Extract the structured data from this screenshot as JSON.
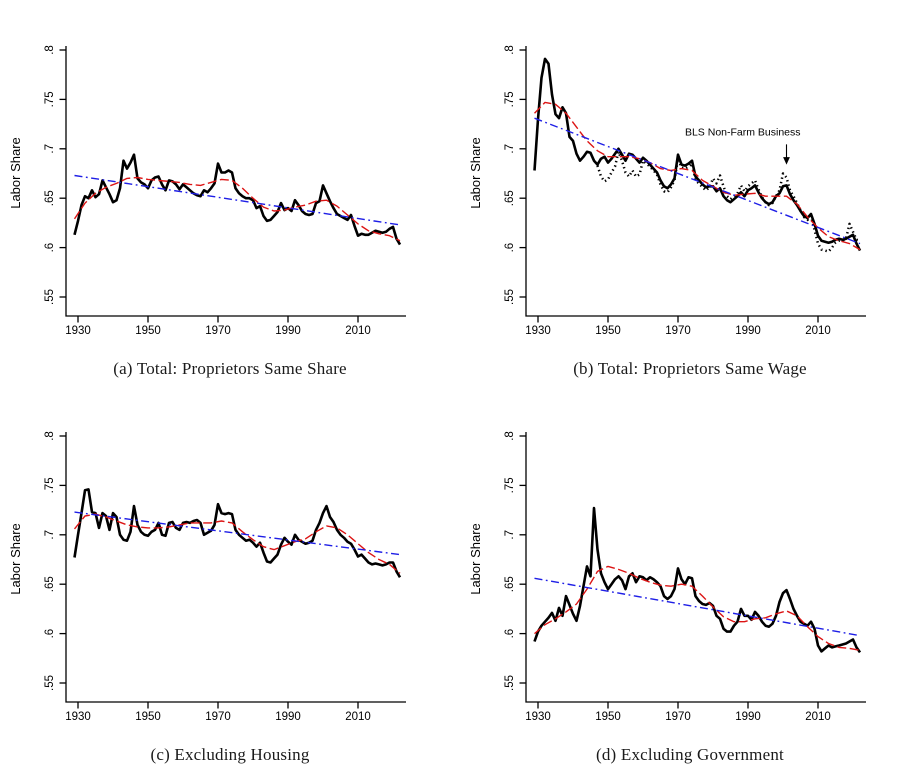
{
  "figure": {
    "ylabel": "Labor Share",
    "background": "#ffffff",
    "colors": {
      "data": "#000000",
      "smooth": "#dc1414",
      "trend": "#1e1ee6",
      "bls": "#000000"
    }
  },
  "chart_styles": {
    "data": {
      "color": "#000000",
      "width": 2.6,
      "dash": ""
    },
    "smooth": {
      "color": "#dc1414",
      "width": 1.4,
      "dash": "9 3.5"
    },
    "trend": {
      "color": "#1e1ee6",
      "width": 1.4,
      "dash": "8 3.5 1.8 3.5"
    },
    "bls": {
      "color": "#000000",
      "width": 2.5,
      "dash": "1.4 3.1"
    }
  },
  "chart_data": [
    {
      "type": "line",
      "panel": "a",
      "caption": "(a) Total: Proprietors Same Share",
      "ylabel": "Labor Share",
      "xlim": [
        1928,
        2023
      ],
      "ylim": [
        0.54,
        0.81
      ],
      "grid": false,
      "legend": "none",
      "xticks": [
        1930,
        1950,
        1970,
        1990,
        2010
      ],
      "yticks": [
        {
          "value": 0.55,
          "label": ".55"
        },
        {
          "value": 0.6,
          "label": ".6"
        },
        {
          "value": 0.65,
          "label": ".65"
        },
        {
          "value": 0.7,
          "label": ".7"
        },
        {
          "value": 0.75,
          "label": ".75"
        },
        {
          "value": 0.8,
          "label": ".8"
        }
      ],
      "series": [
        {
          "name": "labor-share-annual",
          "style": "data",
          "x_start": 1929,
          "x_step": 1,
          "values": [
            0.613,
            0.627,
            0.643,
            0.652,
            0.65,
            0.658,
            0.651,
            0.654,
            0.668,
            0.661,
            0.654,
            0.646,
            0.648,
            0.66,
            0.688,
            0.68,
            0.686,
            0.694,
            0.67,
            0.666,
            0.664,
            0.66,
            0.668,
            0.671,
            0.672,
            0.664,
            0.658,
            0.668,
            0.667,
            0.664,
            0.659,
            0.664,
            0.661,
            0.658,
            0.655,
            0.653,
            0.652,
            0.658,
            0.656,
            0.66,
            0.665,
            0.685,
            0.676,
            0.676,
            0.678,
            0.676,
            0.66,
            0.655,
            0.652,
            0.65,
            0.65,
            0.648,
            0.64,
            0.642,
            0.632,
            0.627,
            0.628,
            0.632,
            0.636,
            0.645,
            0.638,
            0.64,
            0.637,
            0.648,
            0.643,
            0.637,
            0.634,
            0.633,
            0.634,
            0.645,
            0.647,
            0.663,
            0.655,
            0.647,
            0.64,
            0.634,
            0.632,
            0.63,
            0.628,
            0.633,
            0.622,
            0.612,
            0.614,
            0.613,
            0.613,
            0.615,
            0.617,
            0.616,
            0.615,
            0.616,
            0.619,
            0.621,
            0.609,
            0.603
          ]
        },
        {
          "name": "lowess-smooth",
          "style": "smooth",
          "x": [
            1929,
            1932,
            1935,
            1938,
            1941,
            1944,
            1947,
            1950,
            1953,
            1956,
            1959,
            1962,
            1965,
            1968,
            1971,
            1974,
            1977,
            1980,
            1983,
            1986,
            1989,
            1992,
            1995,
            1998,
            2001,
            2004,
            2007,
            2010,
            2013,
            2016,
            2019,
            2022
          ],
          "values": [
            0.629,
            0.645,
            0.655,
            0.661,
            0.665,
            0.67,
            0.671,
            0.669,
            0.668,
            0.667,
            0.666,
            0.664,
            0.663,
            0.666,
            0.669,
            0.668,
            0.66,
            0.65,
            0.641,
            0.637,
            0.638,
            0.641,
            0.643,
            0.647,
            0.648,
            0.642,
            0.633,
            0.624,
            0.617,
            0.614,
            0.612,
            0.607
          ]
        },
        {
          "name": "linear-trend",
          "style": "trend",
          "x": [
            1929,
            2022
          ],
          "values": [
            0.673,
            0.623
          ]
        }
      ]
    },
    {
      "type": "line",
      "panel": "b",
      "caption": "(b) Total: Proprietors Same Wage",
      "ylabel": "Labor Share",
      "xlim": [
        1928,
        2023
      ],
      "ylim": [
        0.54,
        0.81
      ],
      "grid": false,
      "legend": "none",
      "xticks": [
        1930,
        1950,
        1970,
        1990,
        2010
      ],
      "yticks": [
        {
          "value": 0.55,
          "label": ".55"
        },
        {
          "value": 0.6,
          "label": ".6"
        },
        {
          "value": 0.65,
          "label": ".65"
        },
        {
          "value": 0.7,
          "label": ".7"
        },
        {
          "value": 0.75,
          "label": ".75"
        },
        {
          "value": 0.8,
          "label": ".8"
        }
      ],
      "annotation": {
        "text": "BLS Non-Farm Business",
        "text_x": 1988.5,
        "text_y": 0.7135,
        "arrow_x": 2001,
        "arrow_from_y": 0.7045,
        "arrow_to_y": 0.684
      },
      "series": [
        {
          "name": "labor-share-annual",
          "style": "data",
          "x_start": 1929,
          "x_step": 1,
          "values": [
            0.678,
            0.73,
            0.772,
            0.791,
            0.786,
            0.755,
            0.735,
            0.731,
            0.742,
            0.736,
            0.712,
            0.708,
            0.695,
            0.688,
            0.692,
            0.697,
            0.696,
            0.688,
            0.684,
            0.69,
            0.692,
            0.686,
            0.69,
            0.695,
            0.7,
            0.694,
            0.688,
            0.695,
            0.694,
            0.69,
            0.686,
            0.691,
            0.688,
            0.684,
            0.68,
            0.676,
            0.668,
            0.662,
            0.66,
            0.664,
            0.67,
            0.694,
            0.684,
            0.683,
            0.685,
            0.688,
            0.672,
            0.668,
            0.664,
            0.661,
            0.662,
            0.662,
            0.657,
            0.66,
            0.652,
            0.648,
            0.646,
            0.649,
            0.652,
            0.656,
            0.652,
            0.658,
            0.66,
            0.663,
            0.656,
            0.65,
            0.646,
            0.644,
            0.646,
            0.652,
            0.655,
            0.662,
            0.663,
            0.654,
            0.648,
            0.643,
            0.637,
            0.632,
            0.63,
            0.634,
            0.624,
            0.612,
            0.607,
            0.606,
            0.605,
            0.606,
            0.608,
            0.609,
            0.608,
            0.609,
            0.611,
            0.613,
            0.604,
            0.597
          ]
        },
        {
          "name": "BLS Non-Farm Business",
          "style": "bls",
          "x_start": 1947,
          "x_step": 1,
          "values": [
            0.683,
            0.672,
            0.667,
            0.669,
            0.676,
            0.682,
            0.697,
            0.688,
            0.676,
            0.672,
            0.678,
            0.672,
            0.674,
            0.688,
            0.685,
            0.682,
            0.678,
            0.674,
            0.664,
            0.657,
            0.656,
            0.661,
            0.668,
            0.69,
            0.681,
            0.68,
            0.682,
            0.685,
            0.668,
            0.665,
            0.661,
            0.658,
            0.661,
            0.67,
            0.665,
            0.673,
            0.662,
            0.652,
            0.649,
            0.652,
            0.655,
            0.663,
            0.657,
            0.662,
            0.665,
            0.668,
            0.659,
            0.651,
            0.646,
            0.643,
            0.645,
            0.652,
            0.658,
            0.675,
            0.671,
            0.658,
            0.652,
            0.645,
            0.638,
            0.631,
            0.628,
            0.632,
            0.618,
            0.604,
            0.598,
            0.597,
            0.596,
            0.6,
            0.605,
            0.607,
            0.607,
            0.609,
            0.624,
            0.616,
            0.608,
            0.607
          ]
        },
        {
          "name": "lowess-smooth",
          "style": "smooth",
          "x": [
            1929,
            1932,
            1935,
            1938,
            1941,
            1944,
            1947,
            1950,
            1953,
            1956,
            1959,
            1962,
            1965,
            1968,
            1971,
            1974,
            1977,
            1980,
            1983,
            1986,
            1989,
            1992,
            1995,
            1998,
            2001,
            2004,
            2007,
            2010,
            2013,
            2016,
            2019,
            2022
          ],
          "values": [
            0.736,
            0.747,
            0.745,
            0.736,
            0.722,
            0.708,
            0.698,
            0.692,
            0.692,
            0.692,
            0.69,
            0.686,
            0.68,
            0.678,
            0.68,
            0.678,
            0.668,
            0.662,
            0.656,
            0.653,
            0.654,
            0.655,
            0.652,
            0.652,
            0.652,
            0.644,
            0.631,
            0.62,
            0.611,
            0.607,
            0.604,
            0.598
          ]
        },
        {
          "name": "linear-trend",
          "style": "trend",
          "x": [
            1929,
            2022
          ],
          "values": [
            0.731,
            0.604
          ]
        }
      ]
    },
    {
      "type": "line",
      "panel": "c",
      "caption": "(c) Excluding Housing",
      "ylabel": "Labor Share",
      "xlim": [
        1928,
        2023
      ],
      "ylim": [
        0.54,
        0.81
      ],
      "grid": false,
      "legend": "none",
      "xticks": [
        1930,
        1950,
        1970,
        1990,
        2010
      ],
      "yticks": [
        {
          "value": 0.55,
          "label": ".55"
        },
        {
          "value": 0.6,
          "label": ".6"
        },
        {
          "value": 0.65,
          "label": ".65"
        },
        {
          "value": 0.7,
          "label": ".7"
        },
        {
          "value": 0.75,
          "label": ".75"
        },
        {
          "value": 0.8,
          "label": ".8"
        }
      ],
      "series": [
        {
          "name": "labor-share-annual",
          "style": "data",
          "x_start": 1929,
          "x_step": 1,
          "values": [
            0.677,
            0.7,
            0.722,
            0.745,
            0.746,
            0.723,
            0.722,
            0.707,
            0.722,
            0.719,
            0.705,
            0.722,
            0.718,
            0.7,
            0.695,
            0.694,
            0.703,
            0.729,
            0.71,
            0.703,
            0.7,
            0.699,
            0.703,
            0.705,
            0.712,
            0.7,
            0.699,
            0.712,
            0.713,
            0.707,
            0.705,
            0.712,
            0.713,
            0.712,
            0.714,
            0.715,
            0.712,
            0.7,
            0.702,
            0.704,
            0.71,
            0.731,
            0.722,
            0.721,
            0.722,
            0.721,
            0.705,
            0.7,
            0.697,
            0.694,
            0.695,
            0.692,
            0.688,
            0.692,
            0.682,
            0.673,
            0.672,
            0.676,
            0.68,
            0.69,
            0.697,
            0.693,
            0.69,
            0.7,
            0.695,
            0.693,
            0.691,
            0.692,
            0.694,
            0.705,
            0.712,
            0.722,
            0.729,
            0.718,
            0.713,
            0.705,
            0.7,
            0.697,
            0.693,
            0.691,
            0.685,
            0.678,
            0.68,
            0.676,
            0.672,
            0.67,
            0.671,
            0.67,
            0.669,
            0.67,
            0.672,
            0.672,
            0.663,
            0.657
          ]
        },
        {
          "name": "lowess-smooth",
          "style": "smooth",
          "x": [
            1929,
            1932,
            1935,
            1938,
            1941,
            1944,
            1947,
            1950,
            1953,
            1956,
            1959,
            1962,
            1965,
            1968,
            1971,
            1974,
            1977,
            1980,
            1983,
            1986,
            1989,
            1992,
            1995,
            1998,
            2001,
            2004,
            2007,
            2010,
            2013,
            2016,
            2019,
            2022
          ],
          "values": [
            0.706,
            0.719,
            0.721,
            0.718,
            0.714,
            0.71,
            0.708,
            0.707,
            0.707,
            0.708,
            0.71,
            0.712,
            0.712,
            0.712,
            0.714,
            0.712,
            0.703,
            0.695,
            0.688,
            0.685,
            0.689,
            0.693,
            0.696,
            0.703,
            0.709,
            0.707,
            0.7,
            0.691,
            0.682,
            0.675,
            0.67,
            0.661
          ]
        },
        {
          "name": "linear-trend",
          "style": "trend",
          "x": [
            1929,
            2022
          ],
          "values": [
            0.723,
            0.68
          ]
        }
      ]
    },
    {
      "type": "line",
      "panel": "d",
      "caption": "(d) Excluding Government",
      "ylabel": "Labor Share",
      "xlim": [
        1928,
        2023
      ],
      "ylim": [
        0.54,
        0.81
      ],
      "grid": false,
      "legend": "none",
      "xticks": [
        1930,
        1950,
        1970,
        1990,
        2010
      ],
      "yticks": [
        {
          "value": 0.55,
          "label": ".55"
        },
        {
          "value": 0.6,
          "label": ".6"
        },
        {
          "value": 0.65,
          "label": ".65"
        },
        {
          "value": 0.7,
          "label": ".7"
        },
        {
          "value": 0.75,
          "label": ".75"
        },
        {
          "value": 0.8,
          "label": ".8"
        }
      ],
      "series": [
        {
          "name": "labor-share-annual",
          "style": "data",
          "x_start": 1929,
          "x_step": 1,
          "values": [
            0.592,
            0.602,
            0.608,
            0.612,
            0.616,
            0.621,
            0.613,
            0.626,
            0.618,
            0.638,
            0.629,
            0.62,
            0.613,
            0.628,
            0.648,
            0.668,
            0.658,
            0.727,
            0.685,
            0.661,
            0.652,
            0.645,
            0.65,
            0.655,
            0.658,
            0.654,
            0.645,
            0.658,
            0.661,
            0.652,
            0.658,
            0.657,
            0.654,
            0.657,
            0.655,
            0.652,
            0.648,
            0.638,
            0.635,
            0.638,
            0.645,
            0.666,
            0.655,
            0.65,
            0.657,
            0.656,
            0.638,
            0.633,
            0.63,
            0.629,
            0.631,
            0.628,
            0.618,
            0.615,
            0.605,
            0.602,
            0.602,
            0.608,
            0.612,
            0.625,
            0.618,
            0.618,
            0.614,
            0.622,
            0.618,
            0.612,
            0.608,
            0.607,
            0.61,
            0.618,
            0.632,
            0.641,
            0.644,
            0.635,
            0.625,
            0.618,
            0.612,
            0.61,
            0.608,
            0.612,
            0.605,
            0.588,
            0.582,
            0.585,
            0.588,
            0.586,
            0.587,
            0.588,
            0.589,
            0.59,
            0.592,
            0.594,
            0.586,
            0.581
          ]
        },
        {
          "name": "lowess-smooth",
          "style": "smooth",
          "x": [
            1929,
            1932,
            1935,
            1938,
            1941,
            1944,
            1947,
            1950,
            1953,
            1956,
            1959,
            1962,
            1965,
            1968,
            1971,
            1974,
            1977,
            1980,
            1983,
            1986,
            1989,
            1992,
            1995,
            1998,
            2001,
            2004,
            2007,
            2010,
            2013,
            2016,
            2019,
            2022
          ],
          "values": [
            0.6,
            0.609,
            0.615,
            0.622,
            0.63,
            0.645,
            0.663,
            0.668,
            0.665,
            0.661,
            0.656,
            0.652,
            0.649,
            0.648,
            0.65,
            0.648,
            0.638,
            0.627,
            0.617,
            0.612,
            0.612,
            0.615,
            0.616,
            0.62,
            0.623,
            0.618,
            0.607,
            0.597,
            0.59,
            0.586,
            0.585,
            0.583
          ]
        },
        {
          "name": "linear-trend",
          "style": "trend",
          "x": [
            1929,
            2022
          ],
          "values": [
            0.656,
            0.598
          ]
        }
      ]
    }
  ]
}
